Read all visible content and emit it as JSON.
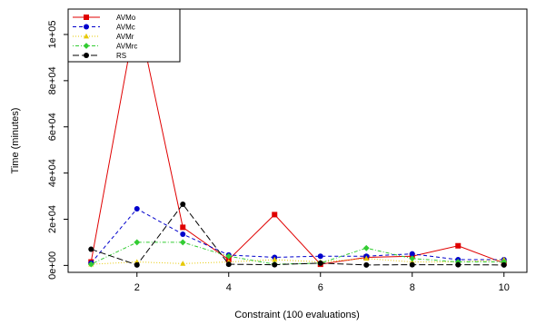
{
  "chart_data": {
    "type": "line",
    "xlabel": "Constraint (100 evaluations)",
    "ylabel": "Time (minutes)",
    "xlim": [
      0.5,
      10.5
    ],
    "ylim": [
      -3000,
      111000
    ],
    "x": [
      1,
      2,
      3,
      4,
      5,
      6,
      7,
      8,
      9,
      10
    ],
    "x_ticks": [
      2,
      4,
      6,
      8,
      10
    ],
    "x_tick_labels": [
      "2",
      "4",
      "6",
      "8",
      "10"
    ],
    "y_ticks": [
      0,
      20000,
      40000,
      60000,
      80000,
      100000
    ],
    "y_tick_labels": [
      "0e+00",
      "2e+04",
      "4e+04",
      "6e+04",
      "8e+04",
      "1e+05"
    ],
    "legend_position": "top-left",
    "series": [
      {
        "name": "AVMo",
        "color": "#e00000",
        "line_style": "solid",
        "marker": "square",
        "values": [
          1500,
          110000,
          16500,
          2500,
          22000,
          500,
          3500,
          4000,
          8500,
          1000
        ]
      },
      {
        "name": "AVMc",
        "color": "#0000cc",
        "line_style": "dashed",
        "marker": "circle",
        "values": [
          1000,
          24500,
          13500,
          4500,
          3500,
          4000,
          4000,
          5000,
          2500,
          2500
        ]
      },
      {
        "name": "AVMr",
        "color": "#e6c800",
        "line_style": "dotted",
        "marker": "triangle",
        "values": [
          500,
          1500,
          800,
          1500,
          2500,
          1500,
          3000,
          1500,
          1500,
          2500
        ]
      },
      {
        "name": "AVMrc",
        "color": "#33cc33",
        "line_style": "dotdash",
        "marker": "diamond",
        "values": [
          500,
          10000,
          10000,
          4000,
          500,
          1000,
          7500,
          3000,
          1500,
          1500
        ]
      },
      {
        "name": "RS",
        "color": "#000000",
        "line_style": "longdash",
        "marker": "circle",
        "values": [
          7000,
          200,
          26500,
          500,
          300,
          1000,
          200,
          300,
          300,
          200
        ]
      }
    ]
  }
}
